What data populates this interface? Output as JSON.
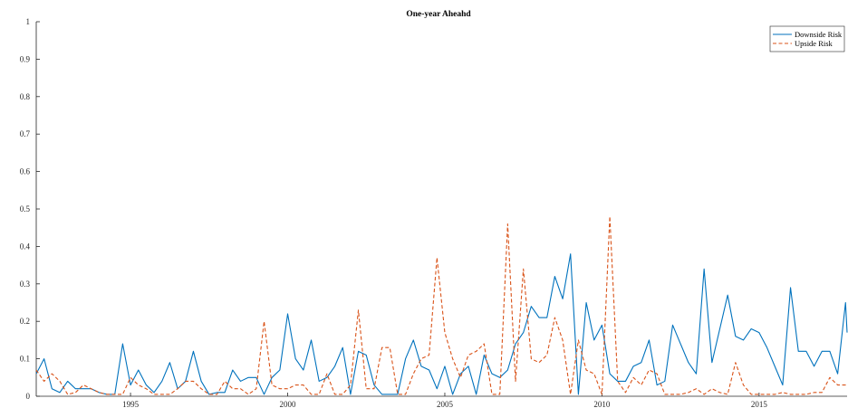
{
  "chart_data": {
    "type": "line",
    "title": "One-year Aheahd",
    "xlabel": "",
    "ylabel": "",
    "xlim": [
      1992.0,
      2017.8
    ],
    "ylim": [
      0,
      1
    ],
    "x_ticks": [
      1995,
      2000,
      2005,
      2010,
      2015
    ],
    "y_ticks": [
      0,
      0.1,
      0.2,
      0.3,
      0.4,
      0.5,
      0.6,
      0.7,
      0.8,
      0.9,
      1
    ],
    "grid": false,
    "legend_position": "top-right",
    "series": [
      {
        "name": "Downside Risk",
        "color": "#0072BD",
        "style": "solid",
        "points": [
          [
            1992.0,
            0.06
          ],
          [
            1992.25,
            0.1
          ],
          [
            1992.5,
            0.02
          ],
          [
            1992.75,
            0.01
          ],
          [
            1993.0,
            0.04
          ],
          [
            1993.25,
            0.02
          ],
          [
            1993.5,
            0.02
          ],
          [
            1993.75,
            0.02
          ],
          [
            1994.0,
            0.01
          ],
          [
            1994.25,
            0.005
          ],
          [
            1994.5,
            0.005
          ],
          [
            1994.75,
            0.14
          ],
          [
            1995.0,
            0.03
          ],
          [
            1995.25,
            0.07
          ],
          [
            1995.5,
            0.03
          ],
          [
            1995.75,
            0.01
          ],
          [
            1996.0,
            0.04
          ],
          [
            1996.25,
            0.09
          ],
          [
            1996.5,
            0.02
          ],
          [
            1996.75,
            0.04
          ],
          [
            1997.0,
            0.12
          ],
          [
            1997.25,
            0.04
          ],
          [
            1997.5,
            0.005
          ],
          [
            1997.75,
            0.01
          ],
          [
            1998.0,
            0.01
          ],
          [
            1998.25,
            0.07
          ],
          [
            1998.5,
            0.04
          ],
          [
            1998.75,
            0.05
          ],
          [
            1999.0,
            0.05
          ],
          [
            1999.25,
            0.005
          ],
          [
            1999.5,
            0.05
          ],
          [
            1999.75,
            0.07
          ],
          [
            2000.0,
            0.22
          ],
          [
            2000.25,
            0.1
          ],
          [
            2000.5,
            0.07
          ],
          [
            2000.75,
            0.15
          ],
          [
            2001.0,
            0.04
          ],
          [
            2001.25,
            0.05
          ],
          [
            2001.5,
            0.08
          ],
          [
            2001.75,
            0.13
          ],
          [
            2002.0,
            0.005
          ],
          [
            2002.25,
            0.12
          ],
          [
            2002.5,
            0.11
          ],
          [
            2002.75,
            0.03
          ],
          [
            2003.0,
            0.005
          ],
          [
            2003.25,
            0.005
          ],
          [
            2003.5,
            0.005
          ],
          [
            2003.75,
            0.1
          ],
          [
            2004.0,
            0.15
          ],
          [
            2004.25,
            0.08
          ],
          [
            2004.5,
            0.07
          ],
          [
            2004.75,
            0.02
          ],
          [
            2005.0,
            0.08
          ],
          [
            2005.25,
            0.005
          ],
          [
            2005.5,
            0.06
          ],
          [
            2005.75,
            0.08
          ],
          [
            2006.0,
            0.005
          ],
          [
            2006.25,
            0.11
          ],
          [
            2006.5,
            0.06
          ],
          [
            2006.75,
            0.05
          ],
          [
            2007.0,
            0.07
          ],
          [
            2007.25,
            0.14
          ],
          [
            2007.5,
            0.17
          ],
          [
            2007.75,
            0.24
          ],
          [
            2008.0,
            0.21
          ],
          [
            2008.25,
            0.21
          ],
          [
            2008.5,
            0.32
          ],
          [
            2008.75,
            0.26
          ],
          [
            2009.0,
            0.38
          ],
          [
            2009.25,
            0.005
          ],
          [
            2009.5,
            0.25
          ],
          [
            2009.75,
            0.15
          ],
          [
            2010.0,
            0.19
          ],
          [
            2010.25,
            0.06
          ],
          [
            2010.5,
            0.04
          ],
          [
            2010.75,
            0.04
          ],
          [
            2011.0,
            0.08
          ],
          [
            2011.25,
            0.09
          ],
          [
            2011.5,
            0.15
          ],
          [
            2011.75,
            0.03
          ],
          [
            2012.0,
            0.04
          ],
          [
            2012.25,
            0.19
          ],
          [
            2012.5,
            0.14
          ],
          [
            2012.75,
            0.09
          ],
          [
            2013.0,
            0.06
          ],
          [
            2013.25,
            0.34
          ],
          [
            2013.5,
            0.09
          ],
          [
            2013.75,
            0.18
          ],
          [
            2014.0,
            0.27
          ],
          [
            2014.25,
            0.16
          ],
          [
            2014.5,
            0.15
          ],
          [
            2014.75,
            0.18
          ],
          [
            2015.0,
            0.17
          ],
          [
            2015.25,
            0.13
          ],
          [
            2015.5,
            0.08
          ],
          [
            2015.75,
            0.03
          ],
          [
            2016.0,
            0.29
          ],
          [
            2016.25,
            0.12
          ],
          [
            2016.5,
            0.12
          ],
          [
            2016.75,
            0.08
          ],
          [
            2017.0,
            0.12
          ],
          [
            2017.25,
            0.12
          ],
          [
            2017.5,
            0.06
          ],
          [
            2017.75,
            0.25
          ],
          [
            2017.8,
            0.17
          ]
        ]
      },
      {
        "name": "Upside Risk",
        "color": "#D95319",
        "style": "dashed",
        "points": [
          [
            1992.0,
            0.07
          ],
          [
            1992.25,
            0.04
          ],
          [
            1992.5,
            0.06
          ],
          [
            1992.75,
            0.04
          ],
          [
            1993.0,
            0.005
          ],
          [
            1993.25,
            0.01
          ],
          [
            1993.5,
            0.03
          ],
          [
            1993.75,
            0.02
          ],
          [
            1994.0,
            0.01
          ],
          [
            1994.25,
            0.005
          ],
          [
            1994.5,
            0.005
          ],
          [
            1994.75,
            0.005
          ],
          [
            1995.0,
            0.05
          ],
          [
            1995.25,
            0.03
          ],
          [
            1995.5,
            0.02
          ],
          [
            1995.75,
            0.005
          ],
          [
            1996.0,
            0.005
          ],
          [
            1996.25,
            0.005
          ],
          [
            1996.5,
            0.02
          ],
          [
            1996.75,
            0.04
          ],
          [
            1997.0,
            0.04
          ],
          [
            1997.25,
            0.02
          ],
          [
            1997.5,
            0.005
          ],
          [
            1997.75,
            0.005
          ],
          [
            1998.0,
            0.04
          ],
          [
            1998.25,
            0.02
          ],
          [
            1998.5,
            0.02
          ],
          [
            1998.75,
            0.005
          ],
          [
            1999.0,
            0.02
          ],
          [
            1999.25,
            0.2
          ],
          [
            1999.5,
            0.03
          ],
          [
            1999.75,
            0.02
          ],
          [
            2000.0,
            0.02
          ],
          [
            2000.25,
            0.03
          ],
          [
            2000.5,
            0.03
          ],
          [
            2000.75,
            0.005
          ],
          [
            2001.0,
            0.005
          ],
          [
            2001.25,
            0.06
          ],
          [
            2001.5,
            0.005
          ],
          [
            2001.75,
            0.005
          ],
          [
            2002.0,
            0.03
          ],
          [
            2002.25,
            0.23
          ],
          [
            2002.5,
            0.02
          ],
          [
            2002.75,
            0.02
          ],
          [
            2003.0,
            0.13
          ],
          [
            2003.25,
            0.13
          ],
          [
            2003.5,
            0.005
          ],
          [
            2003.75,
            0.005
          ],
          [
            2004.0,
            0.06
          ],
          [
            2004.25,
            0.1
          ],
          [
            2004.5,
            0.11
          ],
          [
            2004.75,
            0.37
          ],
          [
            2005.0,
            0.17
          ],
          [
            2005.25,
            0.1
          ],
          [
            2005.5,
            0.05
          ],
          [
            2005.75,
            0.11
          ],
          [
            2006.0,
            0.12
          ],
          [
            2006.25,
            0.14
          ],
          [
            2006.5,
            0.005
          ],
          [
            2006.75,
            0.005
          ],
          [
            2007.0,
            0.46
          ],
          [
            2007.25,
            0.04
          ],
          [
            2007.5,
            0.34
          ],
          [
            2007.75,
            0.1
          ],
          [
            2008.0,
            0.09
          ],
          [
            2008.25,
            0.11
          ],
          [
            2008.5,
            0.21
          ],
          [
            2008.75,
            0.15
          ],
          [
            2009.0,
            0.005
          ],
          [
            2009.25,
            0.15
          ],
          [
            2009.5,
            0.07
          ],
          [
            2009.75,
            0.06
          ],
          [
            2010.0,
            0.005
          ],
          [
            2010.25,
            0.48
          ],
          [
            2010.5,
            0.04
          ],
          [
            2010.75,
            0.01
          ],
          [
            2011.0,
            0.05
          ],
          [
            2011.25,
            0.03
          ],
          [
            2011.5,
            0.07
          ],
          [
            2011.75,
            0.06
          ],
          [
            2012.0,
            0.005
          ],
          [
            2012.25,
            0.005
          ],
          [
            2012.5,
            0.005
          ],
          [
            2012.75,
            0.01
          ],
          [
            2013.0,
            0.02
          ],
          [
            2013.25,
            0.005
          ],
          [
            2013.5,
            0.02
          ],
          [
            2013.75,
            0.01
          ],
          [
            2014.0,
            0.005
          ],
          [
            2014.25,
            0.09
          ],
          [
            2014.5,
            0.03
          ],
          [
            2014.75,
            0.005
          ],
          [
            2015.0,
            0.005
          ],
          [
            2015.25,
            0.005
          ],
          [
            2015.5,
            0.005
          ],
          [
            2015.75,
            0.01
          ],
          [
            2016.0,
            0.005
          ],
          [
            2016.25,
            0.005
          ],
          [
            2016.5,
            0.005
          ],
          [
            2016.75,
            0.01
          ],
          [
            2017.0,
            0.01
          ],
          [
            2017.25,
            0.05
          ],
          [
            2017.5,
            0.03
          ],
          [
            2017.75,
            0.03
          ],
          [
            2017.8,
            0.03
          ]
        ]
      }
    ]
  }
}
